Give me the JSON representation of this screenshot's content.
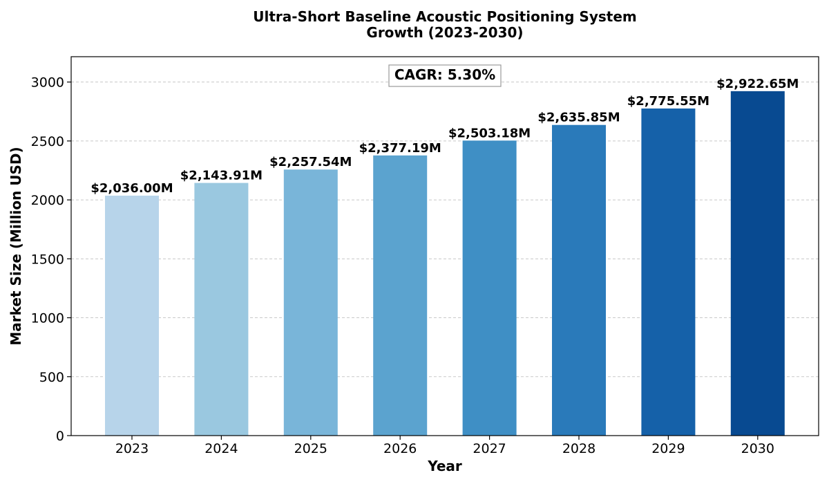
{
  "chart_data": {
    "type": "bar",
    "title_lines": [
      "Ultra-Short Baseline Acoustic Positioning System",
      "Growth (2023-2030)"
    ],
    "xlabel": "Year",
    "ylabel": "Market Size (Million USD)",
    "categories": [
      "2023",
      "2024",
      "2025",
      "2026",
      "2027",
      "2028",
      "2029",
      "2030"
    ],
    "values": [
      2036.0,
      2143.91,
      2257.54,
      2377.19,
      2503.18,
      2635.85,
      2775.55,
      2922.65
    ],
    "data_labels": [
      "$2,036.00M",
      "$2,143.91M",
      "$2,257.54M",
      "$2,377.19M",
      "$2,503.18M",
      "$2,635.85M",
      "$2,775.55M",
      "$2,922.65M"
    ],
    "colors": [
      "#b7d4ea",
      "#9ac8e0",
      "#79b5d9",
      "#5ba3cf",
      "#3f8fc5",
      "#2a7aba",
      "#1561a9",
      "#084a91"
    ],
    "ylim": [
      0,
      3215
    ],
    "yticks": [
      0,
      500,
      1000,
      1500,
      2000,
      2500,
      3000
    ],
    "grid": "horizontal dashed",
    "annotation": "CAGR: 5.30%"
  }
}
